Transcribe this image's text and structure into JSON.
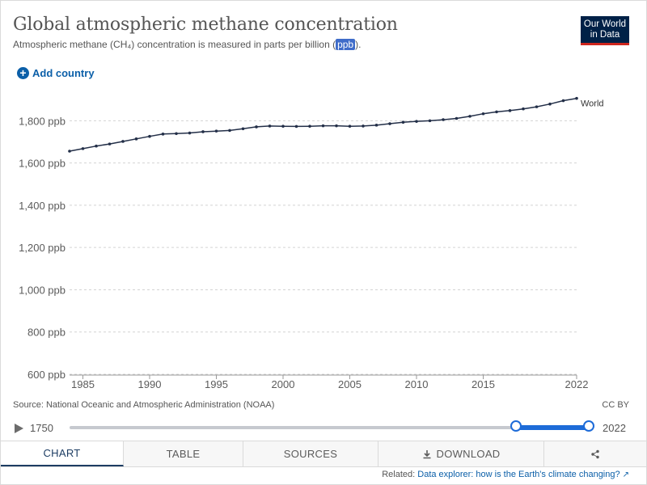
{
  "header": {
    "title": "Global atmospheric methane concentration",
    "subtitle_before": "Atmospheric methane (CH₄) concentration is measured in parts per billion (",
    "subtitle_unit": "ppb",
    "subtitle_after": ")."
  },
  "logo": {
    "line1": "Our World",
    "line2": "in Data"
  },
  "controls": {
    "add_country": "Add country"
  },
  "chart_data": {
    "type": "line",
    "title": "Global atmospheric methane concentration",
    "xlabel": "",
    "ylabel": "",
    "xlim": [
      1984,
      2022
    ],
    "ylim": [
      600,
      1920
    ],
    "x_ticks": [
      1985,
      1990,
      1995,
      2000,
      2005,
      2010,
      2015,
      2022
    ],
    "y_ticks": [
      600,
      800,
      1000,
      1200,
      1400,
      1600,
      1800
    ],
    "y_tick_labels": [
      "600 ppb",
      "800 ppb",
      "1,000 ppb",
      "1,200 ppb",
      "1,400 ppb",
      "1,600 ppb",
      "1,800 ppb"
    ],
    "grid": "horizontal dashed",
    "series": [
      {
        "name": "World",
        "color": "#232f48",
        "x": [
          1984,
          1985,
          1986,
          1987,
          1988,
          1989,
          1990,
          1991,
          1992,
          1993,
          1994,
          1995,
          1996,
          1997,
          1998,
          1999,
          2000,
          2001,
          2002,
          2003,
          2004,
          2005,
          2006,
          2007,
          2008,
          2009,
          2010,
          2011,
          2012,
          2013,
          2014,
          2015,
          2016,
          2017,
          2018,
          2019,
          2020,
          2021,
          2022
        ],
        "values": [
          1656,
          1668,
          1680,
          1690,
          1702,
          1714,
          1726,
          1737,
          1739,
          1742,
          1748,
          1751,
          1754,
          1762,
          1771,
          1775,
          1774,
          1773,
          1774,
          1776,
          1776,
          1774,
          1775,
          1779,
          1786,
          1793,
          1797,
          1800,
          1805,
          1811,
          1821,
          1833,
          1842,
          1848,
          1856,
          1866,
          1879,
          1895,
          1906
        ]
      }
    ]
  },
  "footer": {
    "source": "Source: National Oceanic and Atmospheric Administration (NOAA)",
    "license": "CC BY"
  },
  "timeline": {
    "start_label": "1750",
    "end_label": "2022",
    "selection_start": 1984,
    "selection_end": 2022,
    "range_min": 1750,
    "range_max": 2022
  },
  "tabs": [
    "CHART",
    "TABLE",
    "SOURCES",
    "DOWNLOAD"
  ],
  "active_tab": "CHART",
  "related": {
    "prefix": "Related:",
    "link": "Data explorer: how is the Earth's climate changing?"
  }
}
